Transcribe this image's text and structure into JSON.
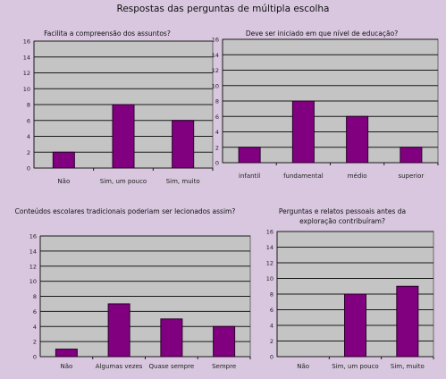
{
  "title": "Respostas das perguntas de múltipla escolha",
  "chart_data": [
    {
      "type": "bar",
      "title": "Facilita a compreensão dos assuntos?",
      "categories": [
        "Não",
        "Sim, um pouco",
        "Sim, muito"
      ],
      "values": [
        2,
        8,
        6
      ],
      "ylim": [
        0,
        16
      ],
      "yticks": [
        0,
        2,
        4,
        6,
        8,
        10,
        12,
        14,
        16
      ],
      "grid": true,
      "bar_color": "#800080"
    },
    {
      "type": "bar",
      "title": "Deve ser iniciado em que nível de educação?",
      "categories": [
        "infantil",
        "fundamental",
        "médio",
        "superior"
      ],
      "values": [
        2,
        8,
        6,
        2
      ],
      "ylim": [
        0,
        16
      ],
      "yticks": [
        0,
        2,
        4,
        6,
        8,
        10,
        12,
        14,
        16
      ],
      "grid": true,
      "bar_color": "#800080"
    },
    {
      "type": "bar",
      "title": "Conteúdos escolares tradicionais poderiam ser lecionados assim?",
      "categories": [
        "Não",
        "Algumas vezes",
        "Quase sempre",
        "Sempre"
      ],
      "values": [
        1,
        7,
        5,
        4
      ],
      "ylim": [
        0,
        16
      ],
      "yticks": [
        0,
        2,
        4,
        6,
        8,
        10,
        12,
        14,
        16
      ],
      "grid": true,
      "bar_color": "#800080"
    },
    {
      "type": "bar",
      "title": [
        "Perguntas e relatos pessoais antes da",
        "exploração contribuíram?"
      ],
      "categories": [
        "Não",
        "Sim, um pouco",
        "Sim, muito"
      ],
      "values": [
        0,
        8,
        9
      ],
      "ylim": [
        0,
        16
      ],
      "yticks": [
        0,
        2,
        4,
        6,
        8,
        10,
        12,
        14,
        16
      ],
      "grid": true,
      "bar_color": "#800080"
    }
  ]
}
